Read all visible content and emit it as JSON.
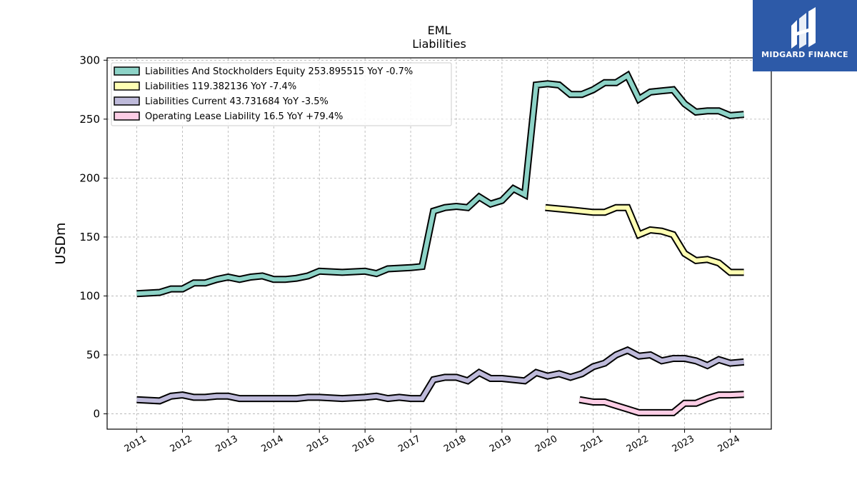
{
  "chart_data": {
    "type": "line",
    "title": "EML",
    "subtitle": "Liabilities",
    "ylabel": "USDm",
    "ylim": [
      -13,
      302
    ],
    "yticks": [
      0,
      50,
      100,
      150,
      200,
      250,
      300
    ],
    "xlim": [
      2010.35,
      2024.9
    ],
    "xticks": [
      2011,
      2012,
      2013,
      2014,
      2015,
      2016,
      2017,
      2018,
      2019,
      2020,
      2021,
      2022,
      2023,
      2024
    ],
    "grid": true,
    "legend_position": "top-left",
    "series": [
      {
        "name": "Liabilities And Stockholders Equity  253.895515 YoY -0.7%",
        "color": "#8dd3c7",
        "points": [
          [
            2011.0,
            102
          ],
          [
            2011.5,
            103
          ],
          [
            2011.75,
            106
          ],
          [
            2012.0,
            106
          ],
          [
            2012.25,
            111
          ],
          [
            2012.5,
            111
          ],
          [
            2012.75,
            114
          ],
          [
            2013.0,
            116
          ],
          [
            2013.25,
            114
          ],
          [
            2013.5,
            116
          ],
          [
            2013.75,
            117
          ],
          [
            2014.0,
            114
          ],
          [
            2014.25,
            114
          ],
          [
            2014.5,
            115
          ],
          [
            2014.75,
            117
          ],
          [
            2015.0,
            121
          ],
          [
            2015.5,
            120
          ],
          [
            2016.0,
            121
          ],
          [
            2016.25,
            119
          ],
          [
            2016.5,
            123
          ],
          [
            2017.0,
            124
          ],
          [
            2017.25,
            125
          ],
          [
            2017.5,
            172
          ],
          [
            2017.75,
            175
          ],
          [
            2018.0,
            176
          ],
          [
            2018.25,
            175
          ],
          [
            2018.5,
            184
          ],
          [
            2018.75,
            178
          ],
          [
            2019.0,
            181
          ],
          [
            2019.25,
            191
          ],
          [
            2019.5,
            186
          ],
          [
            2019.75,
            279
          ],
          [
            2020.0,
            280
          ],
          [
            2020.25,
            279
          ],
          [
            2020.5,
            271
          ],
          [
            2020.75,
            271
          ],
          [
            2021.0,
            275
          ],
          [
            2021.25,
            281
          ],
          [
            2021.5,
            281
          ],
          [
            2021.75,
            287
          ],
          [
            2022.0,
            267
          ],
          [
            2022.25,
            273
          ],
          [
            2022.5,
            274
          ],
          [
            2022.75,
            275
          ],
          [
            2023.0,
            263
          ],
          [
            2023.25,
            256
          ],
          [
            2023.5,
            257
          ],
          [
            2023.75,
            257
          ],
          [
            2024.0,
            253
          ],
          [
            2024.3,
            254
          ]
        ]
      },
      {
        "name": "Liabilities  119.382136 YoY -7.4%",
        "color": "#ffffb3",
        "points": [
          [
            2019.95,
            175
          ],
          [
            2020.5,
            173
          ],
          [
            2021.0,
            171
          ],
          [
            2021.25,
            171
          ],
          [
            2021.5,
            175
          ],
          [
            2021.75,
            175
          ],
          [
            2022.0,
            152
          ],
          [
            2022.25,
            156
          ],
          [
            2022.5,
            155
          ],
          [
            2022.75,
            152
          ],
          [
            2023.0,
            136
          ],
          [
            2023.25,
            130
          ],
          [
            2023.5,
            131
          ],
          [
            2023.75,
            128
          ],
          [
            2024.0,
            120
          ],
          [
            2024.3,
            120
          ]
        ]
      },
      {
        "name": "Liabilities Current  43.731684 YoY -3.5%",
        "color": "#bebada",
        "points": [
          [
            2011.0,
            12
          ],
          [
            2011.5,
            11
          ],
          [
            2011.75,
            15
          ],
          [
            2012.0,
            16
          ],
          [
            2012.25,
            14
          ],
          [
            2012.5,
            14
          ],
          [
            2012.75,
            15
          ],
          [
            2013.0,
            15
          ],
          [
            2013.25,
            13
          ],
          [
            2013.5,
            13
          ],
          [
            2013.75,
            13
          ],
          [
            2014.0,
            13
          ],
          [
            2014.25,
            13
          ],
          [
            2014.5,
            13
          ],
          [
            2014.75,
            14
          ],
          [
            2015.0,
            14
          ],
          [
            2015.5,
            13
          ],
          [
            2016.0,
            14
          ],
          [
            2016.25,
            15
          ],
          [
            2016.5,
            13
          ],
          [
            2016.75,
            14
          ],
          [
            2017.0,
            13
          ],
          [
            2017.25,
            13
          ],
          [
            2017.5,
            29
          ],
          [
            2017.75,
            31
          ],
          [
            2018.0,
            31
          ],
          [
            2018.25,
            28
          ],
          [
            2018.5,
            35
          ],
          [
            2018.75,
            30
          ],
          [
            2019.0,
            30
          ],
          [
            2019.5,
            28
          ],
          [
            2019.75,
            35
          ],
          [
            2020.0,
            32
          ],
          [
            2020.25,
            34
          ],
          [
            2020.5,
            31
          ],
          [
            2020.75,
            34
          ],
          [
            2021.0,
            40
          ],
          [
            2021.25,
            43
          ],
          [
            2021.5,
            50
          ],
          [
            2021.75,
            54
          ],
          [
            2022.0,
            49
          ],
          [
            2022.25,
            50
          ],
          [
            2022.5,
            45
          ],
          [
            2022.75,
            47
          ],
          [
            2023.0,
            47
          ],
          [
            2023.25,
            45
          ],
          [
            2023.5,
            41
          ],
          [
            2023.75,
            46
          ],
          [
            2024.0,
            43
          ],
          [
            2024.3,
            44
          ]
        ]
      },
      {
        "name": "Operating Lease Liability  16.5 YoY +79.4%",
        "color": "#fccde5",
        "points": [
          [
            2020.7,
            12
          ],
          [
            2021.0,
            10
          ],
          [
            2021.25,
            10
          ],
          [
            2021.5,
            7
          ],
          [
            2021.75,
            4
          ],
          [
            2022.0,
            1
          ],
          [
            2022.25,
            1
          ],
          [
            2022.5,
            1
          ],
          [
            2022.75,
            1
          ],
          [
            2023.0,
            9
          ],
          [
            2023.25,
            9
          ],
          [
            2023.5,
            13
          ],
          [
            2023.75,
            16
          ],
          [
            2024.0,
            16
          ],
          [
            2024.3,
            16.5
          ]
        ]
      }
    ]
  },
  "logo": {
    "name": "MIDGARD FINANCE",
    "background": "#2d5aa8"
  }
}
